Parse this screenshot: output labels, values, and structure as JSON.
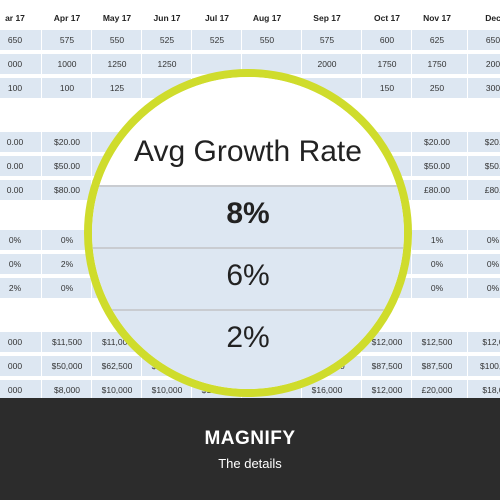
{
  "header_row": [
    "ar 17",
    "Apr 17",
    "May 17",
    "Jun 17",
    "Jul 17",
    "Aug 17",
    "Sep 17",
    "Oct 17",
    "Nov 17",
    "Dec"
  ],
  "blocks": [
    [
      [
        "650",
        "575",
        "550",
        "525",
        "525",
        "550",
        "575",
        "600",
        "625",
        "650"
      ],
      [
        "000",
        "1000",
        "1250",
        "1250",
        "",
        "",
        "2000",
        "1750",
        "1750",
        "200"
      ],
      [
        "100",
        "100",
        "125",
        "",
        "",
        "",
        "",
        "150",
        "250",
        "300"
      ]
    ],
    [
      [
        "0.00",
        "$20.00",
        "",
        "",
        "",
        "",
        "",
        "",
        "$20.00",
        "$20."
      ],
      [
        "0.00",
        "$50.00",
        "",
        "",
        "",
        "",
        "",
        "",
        "$50.00",
        "$50."
      ],
      [
        "0.00",
        "$80.00",
        "",
        "",
        "",
        "",
        "",
        "",
        "£80.00",
        "£80."
      ]
    ],
    [
      [
        "0%",
        "0%",
        "",
        "",
        "",
        "",
        "",
        "",
        "1%",
        "0%"
      ],
      [
        "0%",
        "2%",
        "",
        "",
        "",
        "",
        "",
        "",
        "0%",
        "0%"
      ],
      [
        "2%",
        "0%",
        "",
        "",
        "",
        "",
        "",
        "",
        "0%",
        "0%"
      ]
    ],
    [
      [
        "000",
        "$11,500",
        "$11,000",
        "",
        "",
        "",
        "",
        "$12,000",
        "$12,500",
        "$12,0"
      ],
      [
        "000",
        "$50,000",
        "$62,500",
        "$62,500",
        "",
        "",
        "$100,000",
        "$87,500",
        "$87,500",
        "$100,0"
      ],
      [
        "000",
        "$8,000",
        "$10,000",
        "$10,000",
        "$14,000",
        "$14,000",
        "$16,000",
        "$12,000",
        "£20,000",
        "$18,0"
      ]
    ]
  ],
  "magnifier": {
    "title": "Avg Growth Rate",
    "values": [
      "8%",
      "6%",
      "2%"
    ]
  },
  "footer": {
    "title": "MAGNIFY",
    "subtitle": "The details"
  },
  "colors": {
    "lens_ring": "#cfdc2c",
    "row_blue": "#dde7f2",
    "footer_bg": "#2c2c2c"
  }
}
